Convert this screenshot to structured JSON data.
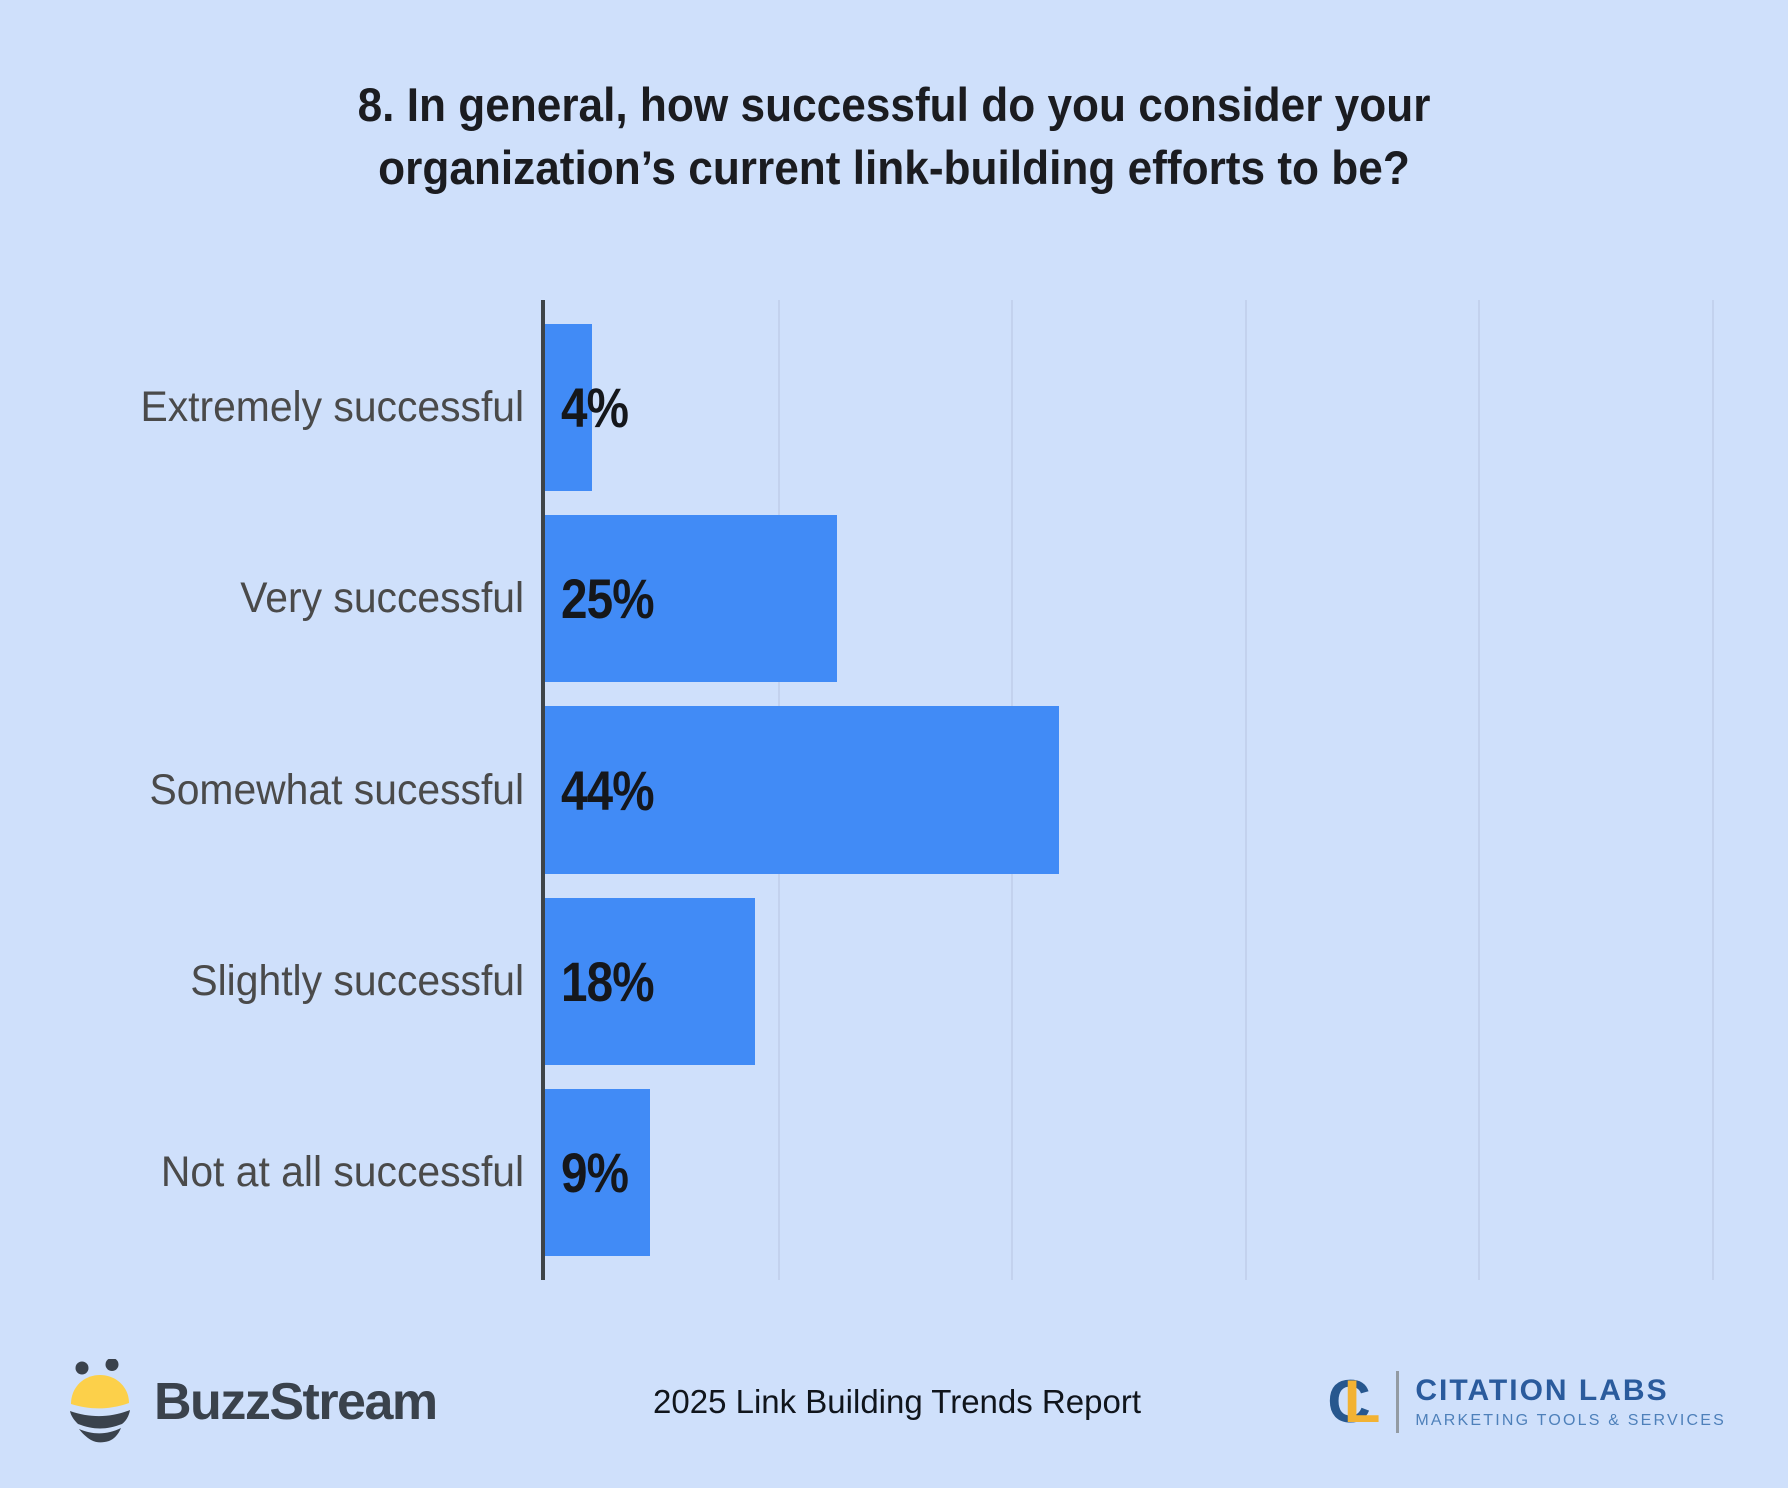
{
  "title": {
    "line1": "8. In general, how successful do you consider your",
    "line2": "organization’s current link-building efforts to be?"
  },
  "chart_data": {
    "type": "bar",
    "orientation": "horizontal",
    "title": "8. In general, how successful do you consider your organization’s current link-building efforts to be?",
    "categories": [
      "Extremely successful",
      "Very successful",
      "Somewhat sucessful",
      "Slightly successful",
      "Not at all successful"
    ],
    "values": [
      4,
      25,
      44,
      18,
      9
    ],
    "value_labels": [
      "4%",
      "25%",
      "44%",
      "18%",
      "9%"
    ],
    "xlabel": "",
    "ylabel": "",
    "xlim": [
      0,
      100
    ],
    "xticks": [
      0,
      20,
      40,
      60,
      80,
      100
    ],
    "grid": true,
    "legend": false,
    "bar_color": "#418bf6",
    "axis_line_color": "#3e4448",
    "gridline_color": "#c3d2ee",
    "category_label_color": "#4a4a4a",
    "value_label_color": "#15171b",
    "background_color": "#cfe0fb"
  },
  "footer": {
    "buzzstream": {
      "label": "BuzzStream",
      "icon": "bee-icon",
      "yellow": "#fcd04a",
      "dark": "#3a424c"
    },
    "center_text": "2025 Link Building Trends Report",
    "citation_labs": {
      "monogram_c": "C",
      "monogram_l": "L",
      "name": "CITATION LABS",
      "tagline": "MARKETING TOOLS & SERVICES",
      "blue": "#2a5b9d",
      "gold": "#f2b233"
    }
  }
}
